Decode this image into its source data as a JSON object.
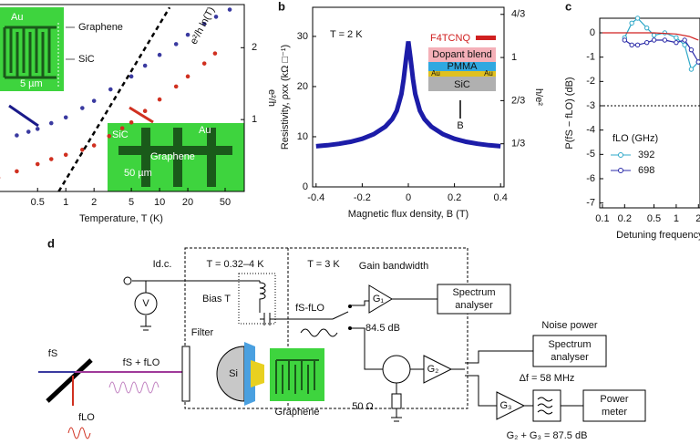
{
  "chart_data": [
    {
      "type": "scatter",
      "x_label": "Temperature, T (K)",
      "y_label": "e²/h",
      "annotation": "e²/h ln(T)",
      "xlog": true,
      "xlim": [
        0.19,
        80
      ],
      "xticks": [
        0.5,
        1,
        2,
        5,
        10,
        20,
        50
      ],
      "ylim": [
        0,
        2.6
      ],
      "yticks": [
        1,
        2
      ],
      "series": [
        {
          "color": "#3a3aa0",
          "style": "markers",
          "x": [
            0.3,
            0.4,
            0.5,
            0.7,
            1,
            1.5,
            2,
            3,
            5,
            7,
            10,
            15,
            20,
            30,
            40,
            56
          ],
          "values": [
            0.78,
            0.83,
            0.87,
            0.95,
            1.03,
            1.16,
            1.26,
            1.42,
            1.6,
            1.75,
            1.9,
            2.05,
            2.18,
            2.33,
            2.43,
            2.53
          ]
        },
        {
          "color": "#d03020",
          "style": "markers",
          "x": [
            0.19,
            0.3,
            0.5,
            0.7,
            1,
            1.5,
            2,
            2.9,
            4,
            5,
            7,
            10,
            15,
            20,
            30,
            39
          ],
          "values": [
            0.19,
            0.28,
            0.38,
            0.45,
            0.51,
            0.58,
            0.64,
            0.77,
            0.88,
            0.96,
            1.12,
            1.28,
            1.46,
            1.6,
            1.78,
            1.92
          ]
        },
        {
          "color": "#000000",
          "style": "dashed",
          "x": [
            0.84,
            12.8
          ],
          "values": [
            0,
            2.56
          ]
        }
      ],
      "insets": [
        {
          "labels": [
            "Au",
            "Graphene",
            "SiC",
            "5 µm"
          ]
        },
        {
          "labels": [
            "SiC",
            "Au",
            "Graphene",
            "50 µm"
          ]
        }
      ]
    },
    {
      "type": "line",
      "label": "b",
      "annotation": "T = 2 K",
      "x_label": "Magnetic flux density, B (T)",
      "y_label": "Resistivity, ρxx (kΩ □⁻¹)",
      "y2_label": "h/e²",
      "xlim": [
        -0.415,
        0.415
      ],
      "xticks": [
        -0.4,
        -0.2,
        0,
        0.2,
        0.4
      ],
      "ylim": [
        0,
        35.8
      ],
      "yticks": [
        0,
        10,
        20,
        30
      ],
      "y2lim": [
        0,
        1.388
      ],
      "y2ticks": [
        {
          "value": 0.3333,
          "label": "1/3"
        },
        {
          "value": 0.6667,
          "label": "2/3"
        },
        1,
        {
          "value": 1.3333,
          "label": "4/3"
        }
      ],
      "series": [
        {
          "color": "#1c1ca8",
          "style": "thick",
          "x": [
            -0.4,
            -0.35,
            -0.3,
            -0.25,
            -0.2,
            -0.15,
            -0.1,
            -0.07,
            -0.05,
            -0.03,
            -0.02,
            -0.01,
            0,
            0.01,
            0.02,
            0.03,
            0.05,
            0.07,
            0.1,
            0.15,
            0.2,
            0.25,
            0.3,
            0.35,
            0.4
          ],
          "values": [
            8.1,
            8.3,
            8.6,
            9.0,
            9.6,
            10.5,
            12.0,
            13.5,
            15.2,
            18.5,
            21.5,
            25.5,
            29,
            25.5,
            21.5,
            18.5,
            15.2,
            13.5,
            12.0,
            10.5,
            9.6,
            9.0,
            8.6,
            8.3,
            8.1
          ]
        }
      ],
      "inset_labels": [
        "F4TCNQ",
        "Dopant blend",
        "PMMA",
        "Au",
        "Au",
        "SiC",
        "B"
      ]
    },
    {
      "type": "line",
      "label": "c",
      "x_label": "Detuning frequency,",
      "y_label": "P(fS − fLO) (dB)",
      "xlog": true,
      "xlim": [
        0.092,
        2.1
      ],
      "xticks": [
        0.1,
        0.2,
        0.5,
        1,
        2
      ],
      "ylim": [
        -7.2,
        0.6
      ],
      "yticks": [
        0,
        -1,
        -2,
        -3,
        -4,
        -5,
        -6,
        -7
      ],
      "reference_line": -3,
      "legend_title": "fLO (GHz)",
      "series": [
        {
          "name": "392",
          "color": "#2fa8c8",
          "style": "line-markers",
          "x": [
            0.2,
            0.25,
            0.3,
            0.4,
            0.5,
            0.7,
            1,
            1.3,
            1.6,
            2
          ],
          "values": [
            -0.2,
            0.4,
            0.6,
            0.2,
            -0.1,
            0,
            -0.2,
            -0.5,
            -1.5,
            -1.2
          ]
        },
        {
          "name": "698",
          "color": "#2a2aa8",
          "style": "line-markers",
          "x": [
            0.2,
            0.25,
            0.3,
            0.4,
            0.5,
            0.7,
            1,
            1.3,
            1.6,
            2
          ],
          "values": [
            -0.3,
            -0.5,
            -0.5,
            -0.4,
            -0.3,
            -0.3,
            -0.4,
            -0.3,
            -0.7,
            -1.2
          ]
        },
        {
          "color": "#d02020",
          "style": "line",
          "x": [
            0.1,
            0.5,
            1,
            1.5,
            2
          ],
          "values": [
            0,
            0,
            -0.05,
            -0.15,
            -0.3
          ]
        }
      ]
    }
  ],
  "diagram": {
    "label": "d",
    "idc": "Id.c.",
    "v": "V",
    "t_cold": "T = 0.32–4 K",
    "t_warm": "T = 3 K",
    "bias": "Bias T",
    "filter": "Filter",
    "si": "Si",
    "graphene": "Graphene",
    "fs": "fS",
    "fsum": "fS + fLO",
    "flo": "fLO",
    "fif": "fS-fLO",
    "gain_bw": "Gain bandwidth",
    "g1": "G₁",
    "g1_db": "84.5 dB",
    "sa1": [
      "Spectrum",
      "analyser"
    ],
    "noise": "Noise power",
    "sa2": [
      "Spectrum",
      "analyser"
    ],
    "g2": "G₂",
    "r50": "50 Ω",
    "df": "Δf = 58 MHz",
    "g3": "G₃",
    "pm": [
      "Power",
      "meter"
    ],
    "gsum": "G₂ + G₃ = 87.5 dB"
  }
}
